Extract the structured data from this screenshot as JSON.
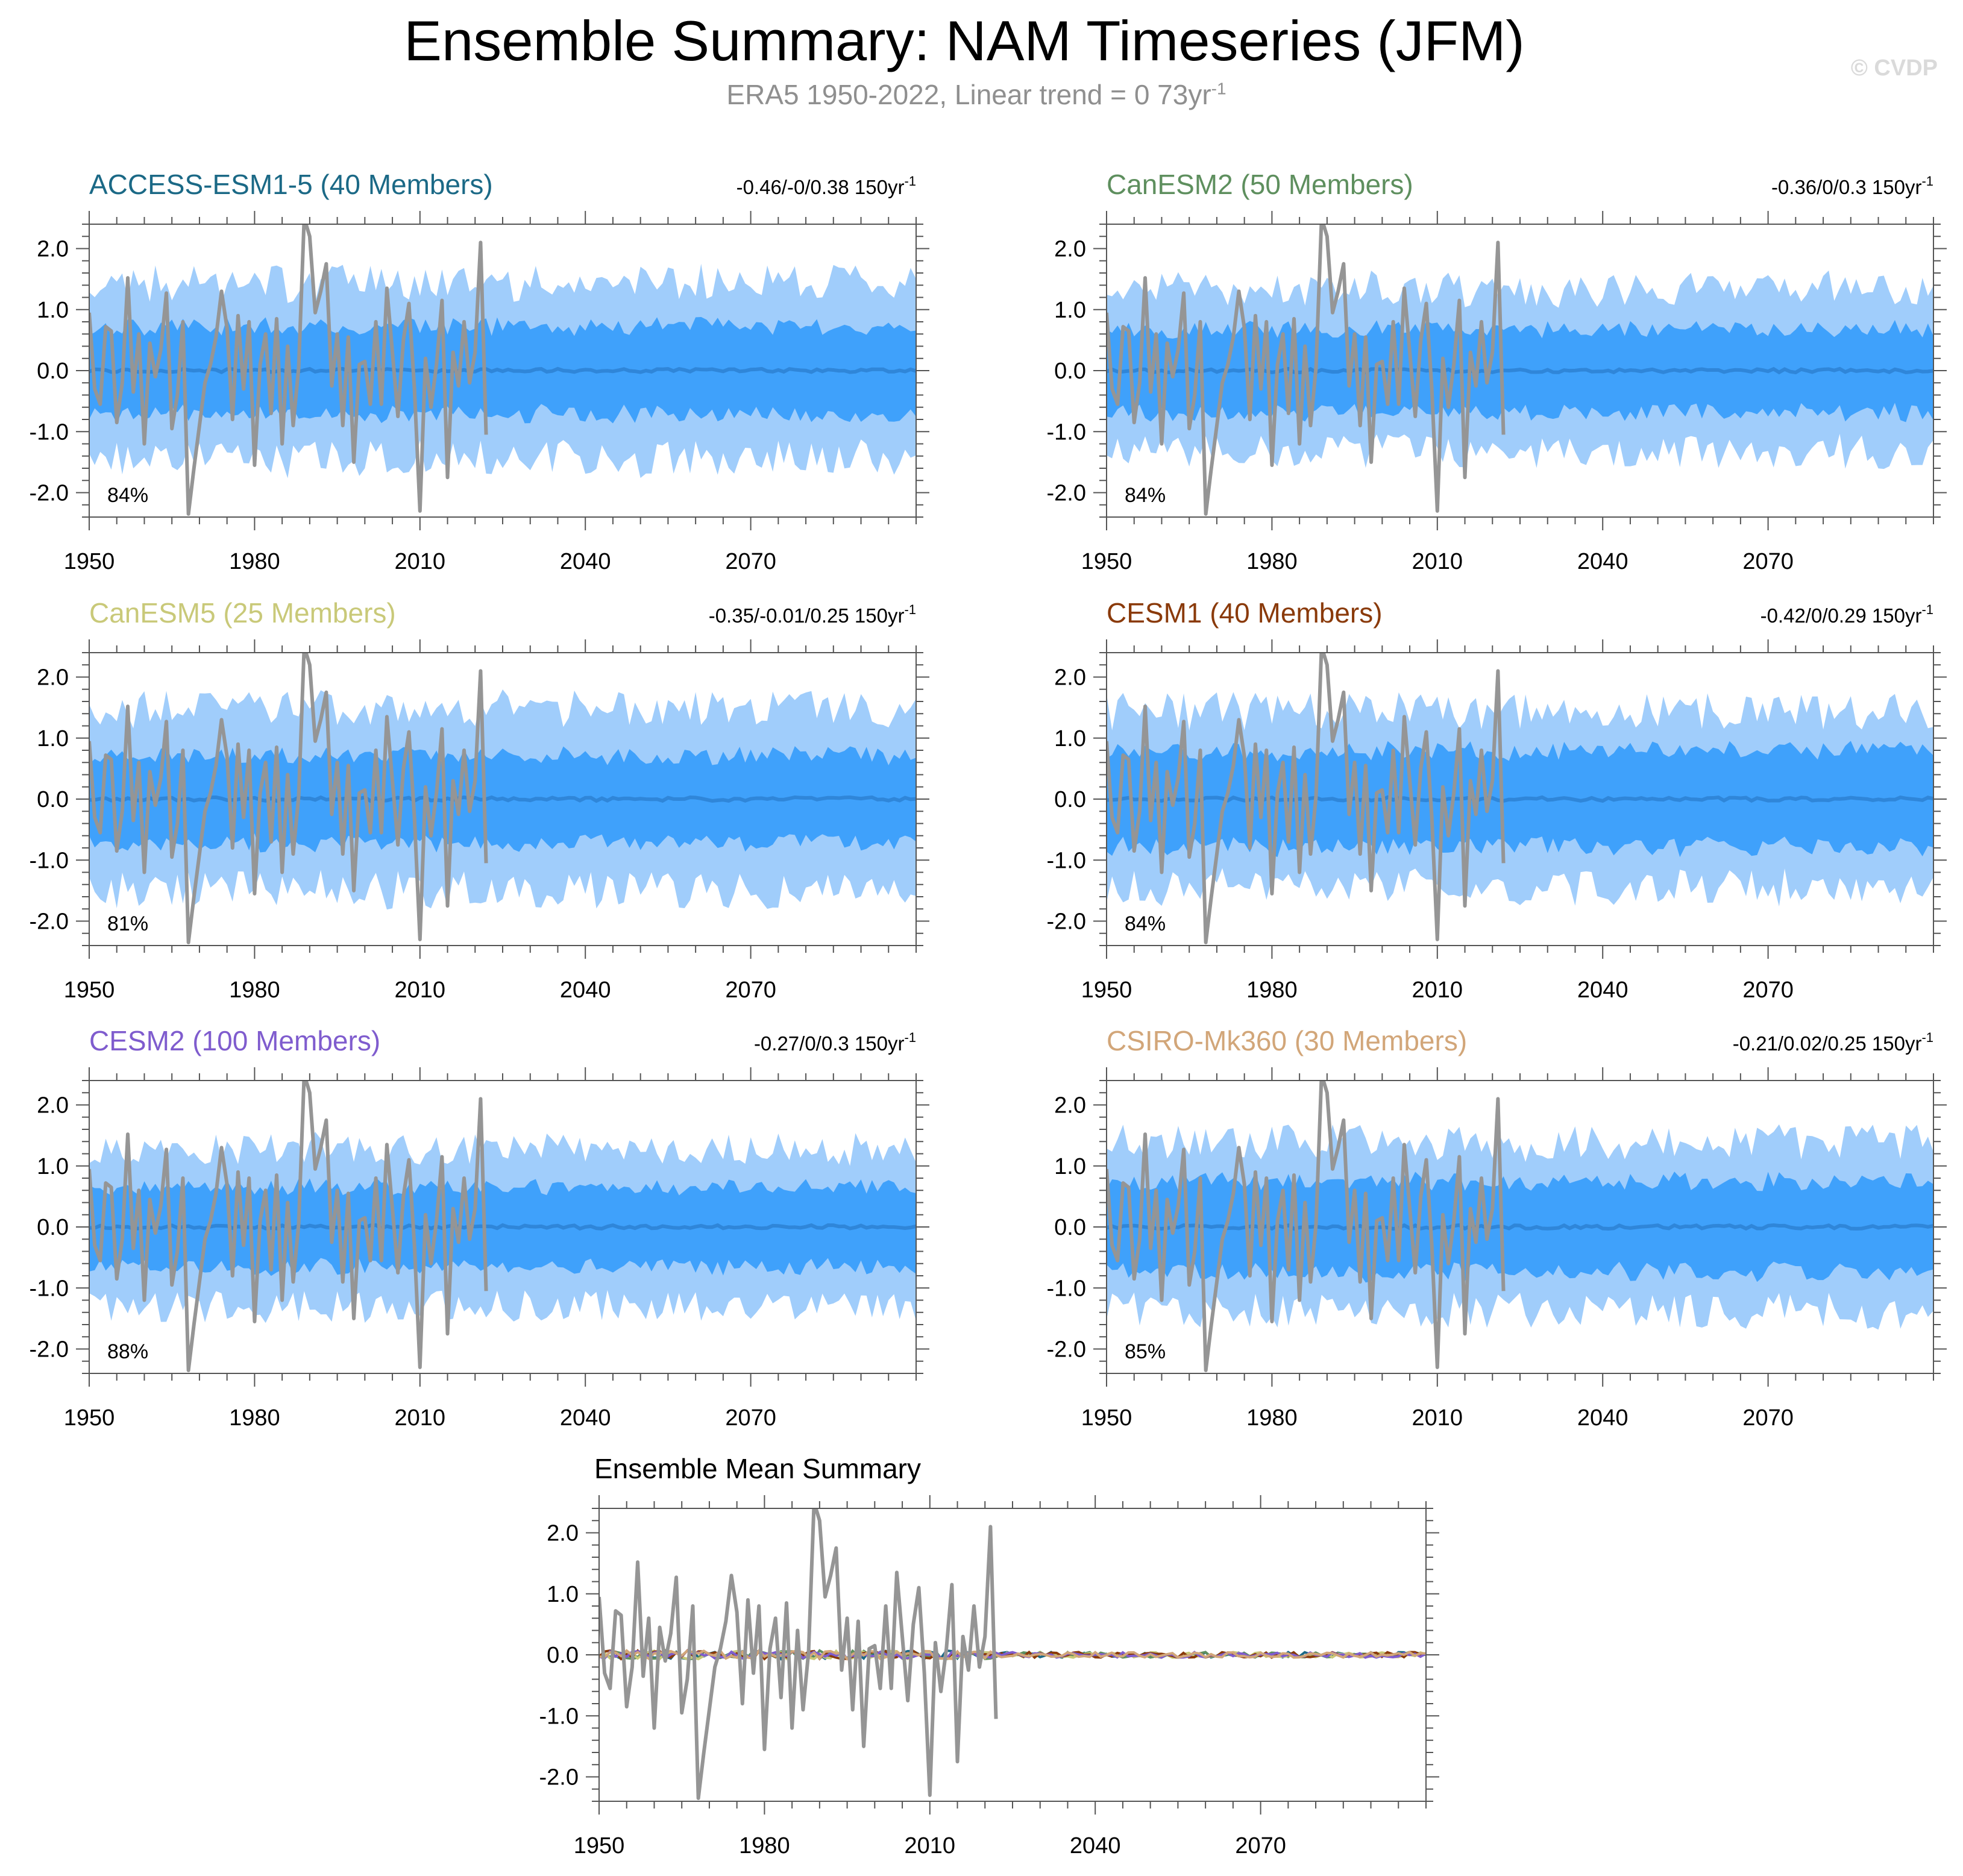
{
  "page": {
    "title": "Ensemble Summary: NAM Timeseries (JFM)",
    "subtitle_main": "ERA5 1950-2022, Linear trend = 0 73yr",
    "subtitle_sup": "-1",
    "copyright": "© CVDP"
  },
  "colors": {
    "band_outer": "#a0cdfb",
    "band_inner": "#3fa1fb",
    "ens_mean": "#2f86d9",
    "obs": "#959595",
    "axis": "#555555"
  },
  "chart_data": [
    {
      "type": "area",
      "name": "ACCESS-ESM1-5",
      "title": "ACCESS-ESM1-5 (40 Members)",
      "title_color": "#1b6986",
      "right_label": "-0.46/-0/0.38 150yr",
      "right_sup": "-1",
      "percent_label": "84%",
      "xlim": [
        1950,
        2100
      ],
      "ylim": [
        -2.4,
        2.4
      ],
      "xticks": [
        1950,
        1980,
        2010,
        2040,
        2070
      ],
      "yticks": [
        2.0,
        1.0,
        0.0,
        -1.0,
        -2.0
      ],
      "ytick_labels": [
        "2.0",
        "1.0",
        "0.0",
        "-1.0",
        "-2.0"
      ],
      "seed": 11,
      "outer_halfwidth": 1.45,
      "inner_halfwidth": 0.72
    },
    {
      "type": "area",
      "name": "CanESM2",
      "title": "CanESM2 (50 Members)",
      "title_color": "#5e8f5e",
      "right_label": "-0.36/0/0.3 150yr",
      "right_sup": "-1",
      "percent_label": "84%",
      "xlim": [
        1950,
        2100
      ],
      "ylim": [
        -2.4,
        2.4
      ],
      "xticks": [
        1950,
        1980,
        2010,
        2040,
        2070
      ],
      "yticks": [
        2.0,
        1.0,
        0.0,
        -1.0,
        -2.0
      ],
      "ytick_labels": [
        "2.0",
        "1.0",
        "0.0",
        "-1.0",
        "-2.0"
      ],
      "seed": 23,
      "outer_halfwidth": 1.35,
      "inner_halfwidth": 0.68
    },
    {
      "type": "area",
      "name": "CanESM5",
      "title": "CanESM5 (25 Members)",
      "title_color": "#c9c979",
      "right_label": "-0.35/-0.01/0.25 150yr",
      "right_sup": "-1",
      "percent_label": "81%",
      "xlim": [
        1950,
        2100
      ],
      "ylim": [
        -2.4,
        2.4
      ],
      "xticks": [
        1950,
        1980,
        2010,
        2040,
        2070
      ],
      "yticks": [
        2.0,
        1.0,
        0.0,
        -1.0,
        -2.0
      ],
      "ytick_labels": [
        "2.0",
        "1.0",
        "0.0",
        "-1.0",
        "-2.0"
      ],
      "seed": 37,
      "outer_halfwidth": 1.5,
      "inner_halfwidth": 0.72
    },
    {
      "type": "area",
      "name": "CESM1",
      "title": "CESM1 (40 Members)",
      "title_color": "#8a3a0a",
      "right_label": "-0.42/0/0.29 150yr",
      "right_sup": "-1",
      "percent_label": "84%",
      "xlim": [
        1950,
        2100
      ],
      "ylim": [
        -2.4,
        2.4
      ],
      "xticks": [
        1950,
        1980,
        2010,
        2040,
        2070
      ],
      "yticks": [
        2.0,
        1.0,
        0.0,
        -1.0,
        -2.0
      ],
      "ytick_labels": [
        "2.0",
        "1.0",
        "0.0",
        "-1.0",
        "-2.0"
      ],
      "seed": 41,
      "outer_halfwidth": 1.45,
      "inner_halfwidth": 0.78
    },
    {
      "type": "area",
      "name": "CESM2",
      "title": "CESM2 (100 Members)",
      "title_color": "#7f5cce",
      "right_label": "-0.27/0/0.3 150yr",
      "right_sup": "-1",
      "percent_label": "88%",
      "xlim": [
        1950,
        2100
      ],
      "ylim": [
        -2.4,
        2.4
      ],
      "xticks": [
        1950,
        1980,
        2010,
        2040,
        2070
      ],
      "yticks": [
        2.0,
        1.0,
        0.0,
        -1.0,
        -2.0
      ],
      "ytick_labels": [
        "2.0",
        "1.0",
        "0.0",
        "-1.0",
        "-2.0"
      ],
      "seed": 53,
      "outer_halfwidth": 1.3,
      "inner_halfwidth": 0.66
    },
    {
      "type": "area",
      "name": "CSIRO-Mk360",
      "title": "CSIRO-Mk360 (30 Members)",
      "title_color": "#d2a679",
      "right_label": "-0.21/0.02/0.25 150yr",
      "right_sup": "-1",
      "percent_label": "85%",
      "xlim": [
        1950,
        2100
      ],
      "ylim": [
        -2.4,
        2.4
      ],
      "xticks": [
        1950,
        1980,
        2010,
        2040,
        2070
      ],
      "yticks": [
        2.0,
        1.0,
        0.0,
        -1.0,
        -2.0
      ],
      "ytick_labels": [
        "2.0",
        "1.0",
        "0.0",
        "-1.0",
        "-2.0"
      ],
      "seed": 67,
      "outer_halfwidth": 1.4,
      "inner_halfwidth": 0.74
    },
    {
      "type": "line",
      "name": "Ensemble Mean",
      "title": "Ensemble Mean Summary",
      "title_color": "#000000",
      "xlim": [
        1950,
        2100
      ],
      "ylim": [
        -2.4,
        2.4
      ],
      "xticks": [
        1950,
        1980,
        2010,
        2040,
        2070
      ],
      "yticks": [
        2.0,
        1.0,
        0.0,
        -1.0,
        -2.0
      ],
      "ytick_labels": [
        "2.0",
        "1.0",
        "0.0",
        "-1.0",
        "-2.0"
      ],
      "mean_series": [
        {
          "name": "ACCESS-ESM1-5",
          "color": "#1b6986"
        },
        {
          "name": "CanESM2",
          "color": "#5e8f5e"
        },
        {
          "name": "CanESM5",
          "color": "#c9c979"
        },
        {
          "name": "CESM1",
          "color": "#8a3a0a"
        },
        {
          "name": "CESM2",
          "color": "#7f5cce"
        },
        {
          "name": "CSIRO-Mk360",
          "color": "#d2a679"
        }
      ]
    }
  ],
  "observations": {
    "name": "ERA5",
    "years": [
      1950,
      2022
    ],
    "values": [
      0.95,
      -0.3,
      -0.55,
      0.72,
      0.65,
      -0.85,
      -0.2,
      1.52,
      -0.35,
      0.6,
      -1.2,
      0.45,
      -0.1,
      0.35,
      1.27,
      -0.95,
      -0.4,
      0.8,
      -2.35,
      -1.6,
      -0.9,
      -0.2,
      0.1,
      0.55,
      1.3,
      0.7,
      -0.8,
      0.9,
      -0.3,
      0.8,
      -1.55,
      0.1,
      0.6,
      -0.7,
      0.85,
      -1.2,
      0.4,
      -0.9,
      0.05,
      2.5,
      2.2,
      0.95,
      1.3,
      1.75,
      -0.25,
      0.6,
      -0.9,
      0.55,
      -1.5,
      0.1,
      0.15,
      -0.55,
      0.8,
      -0.55,
      1.35,
      0.3,
      -0.75,
      0.5,
      1.1,
      -0.3,
      -2.3,
      0.2,
      -0.6,
      0.1,
      1.15,
      -1.75,
      0.3,
      -0.25,
      0.8,
      -0.2,
      0.3,
      2.1,
      -1.05
    ]
  }
}
